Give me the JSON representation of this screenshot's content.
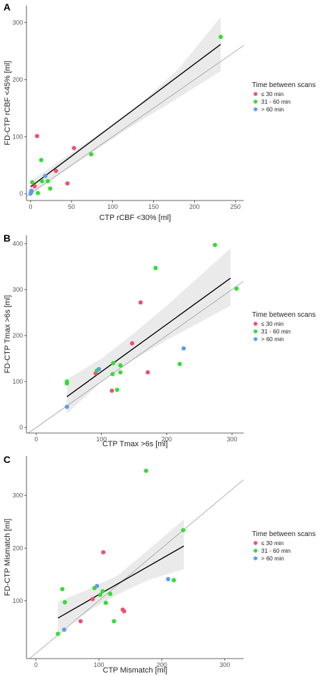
{
  "colors": {
    "le30": "#f0506e",
    "m31_60": "#33dd33",
    "gt60": "#5b9cf0"
  },
  "chart_data": [
    {
      "type": "scatter",
      "panel": "A",
      "xlabel": "CTP rCBF <30% [ml]",
      "ylabel": "FD-CTP rCBF <45% [ml]",
      "xlim": [
        -5,
        260
      ],
      "ylim": [
        -12,
        330
      ],
      "xticks": [
        0,
        50,
        100,
        150,
        200,
        250
      ],
      "yticks": [
        0,
        100,
        200,
        300
      ],
      "grid": false,
      "legend": {
        "title": "Time between scans",
        "position": "right",
        "entries": [
          {
            "key": "le30",
            "label": "≤ 30 min"
          },
          {
            "key": "m31_60",
            "label": "31 - 60 min"
          },
          {
            "key": "gt60",
            "label": "> 60 min"
          }
        ]
      },
      "fit_line": [
        [
          0,
          12
        ],
        [
          232,
          262
        ]
      ],
      "identity_line": true,
      "ci_band": [
        [
          0,
          0,
          22
        ],
        [
          50,
          48,
          72
        ],
        [
          120,
          115,
          140
        ],
        [
          180,
          168,
          218
        ],
        [
          232,
          215,
          310
        ]
      ],
      "points": [
        {
          "x": 8,
          "y": 101,
          "g": "le30"
        },
        {
          "x": 53,
          "y": 80,
          "g": "le30"
        },
        {
          "x": 45,
          "y": 18,
          "g": "le30"
        },
        {
          "x": 31,
          "y": 40,
          "g": "le30"
        },
        {
          "x": 5,
          "y": 13,
          "g": "le30"
        },
        {
          "x": 232,
          "y": 275,
          "g": "m31_60"
        },
        {
          "x": 74,
          "y": 69,
          "g": "m31_60"
        },
        {
          "x": 13,
          "y": 59,
          "g": "m31_60"
        },
        {
          "x": 2,
          "y": 20,
          "g": "m31_60"
        },
        {
          "x": 14,
          "y": 22,
          "g": "m31_60"
        },
        {
          "x": 21,
          "y": 22,
          "g": "m31_60"
        },
        {
          "x": 24,
          "y": 9,
          "g": "m31_60"
        },
        {
          "x": 9,
          "y": 1,
          "g": "m31_60"
        },
        {
          "x": 1,
          "y": 3,
          "g": "m31_60"
        },
        {
          "x": 18,
          "y": 31,
          "g": "gt60"
        },
        {
          "x": 1,
          "y": 5,
          "g": "gt60"
        },
        {
          "x": 0,
          "y": 0,
          "g": "gt60"
        }
      ]
    },
    {
      "type": "scatter",
      "panel": "B",
      "xlabel": "CTP Tmax >6s [ml]",
      "ylabel": "FD-CTP Tmax >6s [ml]",
      "xlim": [
        -15,
        318
      ],
      "ylim": [
        -12,
        418
      ],
      "xticks": [
        0,
        100,
        200,
        300
      ],
      "yticks": [
        0,
        100,
        200,
        300,
        400
      ],
      "grid": false,
      "legend": {
        "title": "Time between scans",
        "position": "right",
        "entries": [
          {
            "key": "le30",
            "label": "≤ 30 min"
          },
          {
            "key": "m31_60",
            "label": "31 - 60 min"
          },
          {
            "key": "gt60",
            "label": "> 60 min"
          }
        ]
      },
      "fit_line": [
        [
          47,
          67
        ],
        [
          298,
          325
        ]
      ],
      "identity_line": true,
      "ci_band": [
        [
          47,
          30,
          105
        ],
        [
          100,
          100,
          150
        ],
        [
          150,
          148,
          205
        ],
        [
          200,
          190,
          265
        ],
        [
          298,
          265,
          390
        ]
      ],
      "points": [
        {
          "x": 160,
          "y": 272,
          "g": "le30"
        },
        {
          "x": 147,
          "y": 183,
          "g": "le30"
        },
        {
          "x": 171,
          "y": 120,
          "g": "le30"
        },
        {
          "x": 91,
          "y": 118,
          "g": "le30"
        },
        {
          "x": 116,
          "y": 80,
          "g": "le30"
        },
        {
          "x": 274,
          "y": 397,
          "g": "m31_60"
        },
        {
          "x": 307,
          "y": 302,
          "g": "m31_60"
        },
        {
          "x": 183,
          "y": 347,
          "g": "m31_60"
        },
        {
          "x": 220,
          "y": 138,
          "g": "m31_60"
        },
        {
          "x": 118,
          "y": 140,
          "g": "m31_60"
        },
        {
          "x": 129,
          "y": 135,
          "g": "m31_60"
        },
        {
          "x": 129,
          "y": 120,
          "g": "m31_60"
        },
        {
          "x": 117,
          "y": 116,
          "g": "m31_60"
        },
        {
          "x": 124,
          "y": 82,
          "g": "m31_60"
        },
        {
          "x": 47,
          "y": 100,
          "g": "m31_60"
        },
        {
          "x": 47,
          "y": 96,
          "g": "m31_60"
        },
        {
          "x": 93,
          "y": 124,
          "g": "m31_60"
        },
        {
          "x": 226,
          "y": 172,
          "g": "gt60"
        },
        {
          "x": 96,
          "y": 127,
          "g": "gt60"
        },
        {
          "x": 47,
          "y": 45,
          "g": "gt60"
        }
      ]
    },
    {
      "type": "scatter",
      "panel": "C",
      "xlabel": "CTP Mismatch [ml]",
      "ylabel": "FD-CTP Mismatch [ml]",
      "xlim": [
        -15,
        330
      ],
      "ylim": [
        -10,
        375
      ],
      "xticks": [
        0,
        100,
        200,
        300
      ],
      "yticks": [
        100,
        200,
        300
      ],
      "grid": false,
      "legend": {
        "title": "Time between scans",
        "position": "right",
        "entries": [
          {
            "key": "le30",
            "label": "≤ 30 min"
          },
          {
            "key": "m31_60",
            "label": "31 - 60 min"
          },
          {
            "key": "gt60",
            "label": "> 60 min"
          }
        ]
      },
      "fit_line": [
        [
          35,
          67
        ],
        [
          235,
          204
        ]
      ],
      "identity_line": true,
      "ci_band": [
        [
          35,
          38,
          98
        ],
        [
          80,
          78,
          120
        ],
        [
          130,
          112,
          148
        ],
        [
          180,
          140,
          198
        ],
        [
          235,
          160,
          255
        ]
      ],
      "points": [
        {
          "x": 107,
          "y": 192,
          "g": "le30"
        },
        {
          "x": 90,
          "y": 103,
          "g": "le30"
        },
        {
          "x": 138,
          "y": 83,
          "g": "le30"
        },
        {
          "x": 140,
          "y": 80,
          "g": "le30"
        },
        {
          "x": 71,
          "y": 61,
          "g": "le30"
        },
        {
          "x": 175,
          "y": 347,
          "g": "m31_60"
        },
        {
          "x": 234,
          "y": 234,
          "g": "m31_60"
        },
        {
          "x": 219,
          "y": 139,
          "g": "m31_60"
        },
        {
          "x": 106,
          "y": 118,
          "g": "m31_60"
        },
        {
          "x": 118,
          "y": 113,
          "g": "m31_60"
        },
        {
          "x": 93,
          "y": 124,
          "g": "m31_60"
        },
        {
          "x": 102,
          "y": 111,
          "g": "m31_60"
        },
        {
          "x": 111,
          "y": 96,
          "g": "m31_60"
        },
        {
          "x": 42,
          "y": 122,
          "g": "m31_60"
        },
        {
          "x": 46,
          "y": 97,
          "g": "m31_60"
        },
        {
          "x": 124,
          "y": 61,
          "g": "m31_60"
        },
        {
          "x": 35,
          "y": 37,
          "g": "m31_60"
        },
        {
          "x": 210,
          "y": 141,
          "g": "gt60"
        },
        {
          "x": 97,
          "y": 128,
          "g": "gt60"
        },
        {
          "x": 45,
          "y": 45,
          "g": "gt60"
        }
      ]
    }
  ]
}
